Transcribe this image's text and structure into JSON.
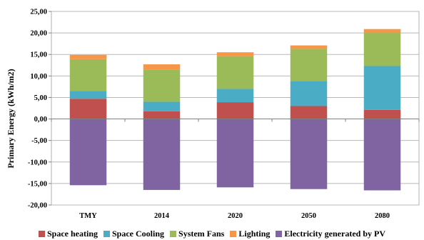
{
  "chart_data": {
    "type": "bar",
    "stacked": true,
    "categories": [
      "TMY",
      "2014",
      "2020",
      "2050",
      "2080"
    ],
    "series": [
      {
        "name": "Space heating",
        "color": "#C0504D",
        "values": [
          4.7,
          1.8,
          3.9,
          3.0,
          2.1
        ]
      },
      {
        "name": "Space Cooling",
        "color": "#4BACC6",
        "values": [
          1.8,
          2.2,
          3.1,
          5.8,
          10.2
        ]
      },
      {
        "name": "System Fans",
        "color": "#9BBB59",
        "values": [
          7.4,
          7.4,
          7.6,
          7.5,
          7.7
        ]
      },
      {
        "name": "Lighting",
        "color": "#F79646",
        "values": [
          1.0,
          1.3,
          0.9,
          0.8,
          0.9
        ]
      },
      {
        "name": "Electricity generated by PV",
        "color": "#8064A2",
        "values": [
          -15.4,
          -16.5,
          -15.9,
          -16.3,
          -16.6
        ]
      }
    ],
    "ylabel": "Primary Energy  (kWh/m2)",
    "ylim": [
      -20,
      25
    ],
    "yticks": [
      "25,00",
      "20,00",
      "15,00",
      "10,00",
      "5,00",
      "0,00",
      "-5,00",
      "-10,00",
      "-15,00",
      "-20,00"
    ],
    "ytick_values": [
      25,
      20,
      15,
      10,
      5,
      0,
      -5,
      -10,
      -15,
      -20
    ],
    "grid": true,
    "legend": "bottom"
  }
}
